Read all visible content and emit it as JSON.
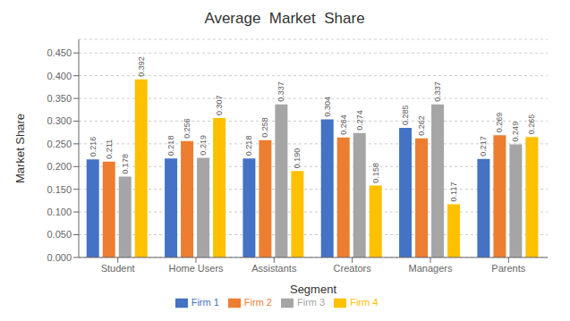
{
  "chart_data": {
    "type": "bar",
    "title": "Average  Market  Share",
    "x_label": "Segment",
    "y_label": "Market Share",
    "categories": [
      "Student",
      "Home Users",
      "Assistants",
      "Creators",
      "Managers",
      "Parents"
    ],
    "series": [
      {
        "name": "Firm 1",
        "color": "#4472C4",
        "values": [
          0.216,
          0.218,
          0.218,
          0.304,
          0.285,
          0.217
        ],
        "value_labels": [
          "0.216",
          "0.218",
          "0.218",
          "0.304",
          "0.285",
          "0.217"
        ]
      },
      {
        "name": "Firm 2",
        "color": "#ED7D31",
        "values": [
          0.211,
          0.256,
          0.258,
          0.264,
          0.262,
          0.269
        ],
        "value_labels": [
          "0.211",
          "0.256",
          "0.258",
          "0.264",
          "0.262",
          "0.269"
        ]
      },
      {
        "name": "Firm 3",
        "color": "#A5A5A5",
        "values": [
          0.178,
          0.219,
          0.337,
          0.274,
          0.337,
          0.249
        ],
        "value_labels": [
          "0.178",
          "0.219",
          "0.337",
          "0.274",
          "0.337",
          "0.249"
        ]
      },
      {
        "name": "Firm 4",
        "color": "#FFC000",
        "values": [
          0.392,
          0.307,
          0.19,
          0.158,
          0.117,
          0.265
        ],
        "value_labels": [
          "0.392",
          "0.307",
          "0.190",
          "0.158",
          "0.117",
          "0.265"
        ]
      }
    ],
    "ylim": [
      0,
      0.48
    ],
    "yticks": [
      {
        "value": 0,
        "label": "0.000"
      },
      {
        "value": 0.05,
        "label": "0.050"
      },
      {
        "value": 0.1,
        "label": "0.100"
      },
      {
        "value": 0.15,
        "label": "0.150"
      },
      {
        "value": 0.2,
        "label": "0.200"
      },
      {
        "value": 0.25,
        "label": "0.250"
      },
      {
        "value": 0.3,
        "label": "0.300"
      },
      {
        "value": 0.35,
        "label": "0.350"
      },
      {
        "value": 0.4,
        "label": "0.400"
      },
      {
        "value": 0.45,
        "label": "0.450"
      }
    ],
    "grid": true,
    "data_labels": true,
    "legend": "bottom"
  }
}
